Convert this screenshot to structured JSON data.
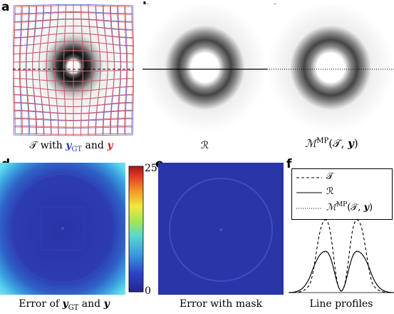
{
  "panels": {
    "a": {
      "letter": "a",
      "caption_pre": "𝒯 with ",
      "caption_y_gt": "y",
      "caption_gt_sub": "GT",
      "caption_mid": " and ",
      "caption_y": "y"
    },
    "b": {
      "letter": "b",
      "caption": "ℛ"
    },
    "c": {
      "letter": "c",
      "caption_M": "ℳ",
      "caption_sup": "MP",
      "caption_args": "(𝒯, ",
      "caption_y": "y",
      "caption_close": ")"
    },
    "d": {
      "letter": "d",
      "caption_pre": "Error of ",
      "caption_y_gt": "y",
      "caption_gt_sub": "GT",
      "caption_mid": " and ",
      "caption_y": "y"
    },
    "e": {
      "letter": "e",
      "caption": "Error with mask"
    },
    "f": {
      "letter": "f",
      "caption": "Line profiles"
    }
  },
  "colorbar": {
    "max_label": "25",
    "min_label": "0"
  },
  "legend": {
    "items": [
      {
        "label": "𝒯",
        "style": "dashed"
      },
      {
        "label": "ℛ",
        "style": "solid"
      },
      {
        "label_M": "ℳ",
        "label_sup": "MP",
        "label_args": "(𝒯, ",
        "label_y": "y",
        "label_close": ")",
        "style": "dotted"
      }
    ]
  },
  "colors": {
    "blue_grid": "#6a6fd6",
    "red_grid": "#d85a5a",
    "error_bg": "#2a35a8"
  }
}
